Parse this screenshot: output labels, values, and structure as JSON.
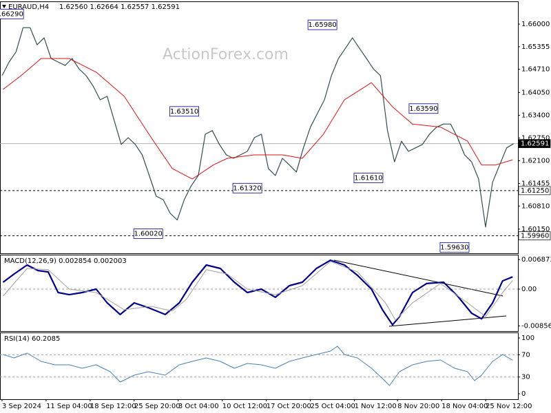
{
  "chart_data": [
    {
      "type": "line",
      "title": "EURAUD,H4",
      "subtitle": "1.62560 1.62664 1.62557 1.62591",
      "watermark": "ActionForex.com",
      "xlim": [
        0,
        516
      ],
      "ylim": [
        1.5946,
        1.6663
      ],
      "yticks": [
        {
          "value": 1.66,
          "label": "1.66000"
        },
        {
          "value": 1.65355,
          "label": "1.65355"
        },
        {
          "value": 1.6471,
          "label": "1.64710"
        },
        {
          "value": 1.6405,
          "label": "1.64050"
        },
        {
          "value": 1.634,
          "label": "1.63400"
        },
        {
          "value": 1.6275,
          "label": "1.62750"
        },
        {
          "value": 1.621,
          "label": "1.62100"
        },
        {
          "value": 1.61455,
          "label": "1.61455"
        },
        {
          "value": 1.6081,
          "label": "1.60810"
        },
        {
          "value": 1.6015,
          "label": "1.60150"
        }
      ],
      "levels": [
        {
          "value": 1.6125,
          "label": "1.61250",
          "style": "dashed"
        },
        {
          "value": 1.5996,
          "label": "1.59960",
          "style": "dashed"
        },
        {
          "value": 1.62591,
          "label": "1.62591",
          "style": "solid"
        }
      ],
      "series": [
        {
          "color": "#2f4f4f",
          "width": 1.2,
          "x": [
            0,
            7,
            14,
            21,
            28,
            35,
            42,
            49,
            56,
            63,
            70,
            77,
            84,
            91,
            98,
            105,
            112,
            119,
            126,
            133,
            140,
            147,
            154,
            161,
            168,
            175,
            182,
            189,
            196,
            203,
            210,
            217,
            224,
            231,
            238,
            245,
            252,
            259,
            266,
            273,
            280,
            287,
            294,
            301,
            308,
            315,
            322,
            329,
            336,
            343,
            350,
            357,
            364,
            371,
            378,
            385,
            392,
            399,
            406,
            413,
            420,
            427,
            434,
            441,
            448,
            455,
            462,
            469,
            476,
            483,
            490,
            497,
            504,
            511
          ],
          "values": [
            1.6453,
            1.6492,
            1.6521,
            1.659,
            1.659,
            1.6541,
            1.6561,
            1.6502,
            1.6492,
            1.6482,
            1.6502,
            1.6472,
            1.6453,
            1.6423,
            1.6384,
            1.6394,
            1.6325,
            1.6257,
            1.6276,
            1.6257,
            1.6227,
            1.6168,
            1.6109,
            1.6099,
            1.606,
            1.6041,
            1.6099,
            1.6139,
            1.6168,
            1.6286,
            1.6296,
            1.6257,
            1.6227,
            1.6217,
            1.6227,
            1.6237,
            1.6276,
            1.6286,
            1.6188,
            1.6168,
            1.6217,
            1.6198,
            1.6178,
            1.6247,
            1.6306,
            1.6345,
            1.6384,
            1.6453,
            1.6502,
            1.6531,
            1.6561,
            1.6531,
            1.6502,
            1.6472,
            1.6453,
            1.6296,
            1.6207,
            1.6266,
            1.6237,
            1.6247,
            1.6257,
            1.6286,
            1.6306,
            1.6315,
            1.6315,
            1.6276,
            1.6227,
            1.6207,
            1.6158,
            1.6021,
            1.6149,
            1.6198,
            1.6247,
            1.6259
          ]
        },
        {
          "color": "#dd1111",
          "width": 1,
          "x": [
            1,
            19,
            39,
            67,
            94,
            122,
            149,
            170,
            190,
            211,
            225,
            252,
            280,
            300,
            321,
            342,
            369,
            390,
            410,
            438,
            465,
            479,
            493,
            510
          ],
          "values": [
            1.6414,
            1.6453,
            1.6502,
            1.6502,
            1.6463,
            1.6394,
            1.6276,
            1.6188,
            1.6158,
            1.6198,
            1.6217,
            1.6227,
            1.6227,
            1.6217,
            1.6286,
            1.6384,
            1.6433,
            1.6364,
            1.6315,
            1.6306,
            1.6266,
            1.6198,
            1.6198,
            1.6213
          ]
        }
      ],
      "annotations": [
        {
          "label": "1.66290",
          "value": 1.6629,
          "x": 7
        },
        {
          "label": "1.65980",
          "value": 1.6598,
          "x": 320
        },
        {
          "label": "1.63510",
          "value": 1.6351,
          "x": 182
        },
        {
          "label": "1.63590",
          "value": 1.6359,
          "x": 421
        },
        {
          "label": "1.61320",
          "value": 1.6132,
          "x": 245
        },
        {
          "label": "1.61610",
          "value": 1.6161,
          "x": 366
        },
        {
          "label": "1.60020",
          "value": 1.6002,
          "x": 146
        },
        {
          "label": "1.59630",
          "value": 1.5963,
          "x": 452
        }
      ]
    },
    {
      "type": "line",
      "title": "MACD(12,26,9) 0.002854 0.002003",
      "xlim": [
        0,
        516
      ],
      "ylim": [
        -0.00959,
        0.00783
      ],
      "yticks": [
        0.006873,
        {
          "value": 0,
          "label": "0.00"
        },
        -0.00856
      ],
      "levels": [
        0
      ],
      "series": [
        {
          "color": "#00008b",
          "width": 2.2,
          "x": [
            1,
            12,
            25,
            36,
            46,
            56,
            67,
            80,
            94,
            105,
            118,
            132,
            146,
            163,
            177,
            190,
            204,
            218,
            232,
            245,
            259,
            273,
            287,
            300,
            314,
            328,
            342,
            355,
            369,
            380,
            390,
            397,
            410,
            424,
            441,
            455,
            469,
            479,
            490,
            500,
            510
          ],
          "values": [
            0.0016,
            0.0035,
            0.0056,
            0.0043,
            0.004,
            -0.0008,
            -0.0013,
            -0.0008,
            0,
            -0.0032,
            -0.0059,
            -0.0032,
            -0.0043,
            -0.0059,
            -0.0032,
            0.0016,
            0.0056,
            0.0048,
            0.0016,
            -0.0008,
            0,
            -0.0019,
            0.0008,
            0.0016,
            0.0048,
            0.0067,
            0.0056,
            0.0032,
            0,
            -0.0048,
            -0.0083,
            -0.0064,
            -0.0008,
            0.0013,
            0.0016,
            -0.0016,
            -0.0056,
            -0.0069,
            -0.0032,
            0.0019,
            0.00285
          ]
        },
        {
          "color": "#a0a0a0",
          "width": 1,
          "x": [
            1,
            25,
            46,
            67,
            94,
            122,
            149,
            170,
            184,
            204,
            225,
            245,
            273,
            300,
            328,
            355,
            383,
            393,
            410,
            438,
            465,
            483,
            500,
            510
          ],
          "values": [
            -0.0016,
            0.0048,
            0.0045,
            0,
            -0.0008,
            -0.0048,
            -0.004,
            -0.0051,
            -0.0024,
            0.0045,
            0.0035,
            0,
            -0.0013,
            0.0008,
            0.0064,
            0.004,
            -0.0032,
            -0.0072,
            -0.0032,
            0.0013,
            -0.0032,
            -0.0064,
            -0.0008,
            0.002
          ]
        }
      ]
    },
    {
      "type": "line",
      "title": "RSI(14) 60.2085",
      "xlim": [
        0,
        516
      ],
      "ylim": [
        -7.4,
        109.9
      ],
      "yticks": [
        100,
        70,
        30,
        0
      ],
      "levels": [
        70,
        30
      ],
      "xticks": [
        {
          "value": 0,
          "label": "3 Sep 2024"
        },
        {
          "value": 44,
          "label": "11 Sep 04:00"
        },
        {
          "value": 88,
          "label": "18 Sep 12:00"
        },
        {
          "value": 132,
          "label": "25 Sep 20:00"
        },
        {
          "value": 176,
          "label": "3 Oct 04:00"
        },
        {
          "value": 220,
          "label": "10 Oct 12:00"
        },
        {
          "value": 264,
          "label": "17 Oct 20:00"
        },
        {
          "value": 308,
          "label": "25 Oct 04:00"
        },
        {
          "value": 352,
          "label": "1 Nov 12:00"
        },
        {
          "value": 395,
          "label": "8 Nov 20:00"
        },
        {
          "value": 439,
          "label": "18 Nov 04:00"
        },
        {
          "value": 483,
          "label": "25 Nov 12:00"
        }
      ],
      "series": [
        {
          "color": "#4682b4",
          "width": 1,
          "x": [
            1,
            12,
            25,
            39,
            53,
            67,
            80,
            94,
            108,
            118,
            132,
            146,
            163,
            177,
            190,
            204,
            218,
            232,
            245,
            259,
            273,
            287,
            300,
            314,
            328,
            335,
            342,
            355,
            369,
            380,
            387,
            397,
            410,
            424,
            438,
            452,
            465,
            472,
            479,
            490,
            500,
            510
          ],
          "values": [
            70.4,
            64.2,
            72.8,
            58,
            51.9,
            51.9,
            45.7,
            51.9,
            39.5,
            21,
            33.3,
            39.5,
            33.3,
            51.9,
            58,
            64.2,
            58,
            45.7,
            54.3,
            51.9,
            45.7,
            58,
            64.2,
            70.4,
            76.5,
            85.2,
            70.4,
            64.2,
            45.7,
            27.2,
            14.8,
            39.5,
            51.9,
            58,
            60.5,
            45.7,
            39.5,
            23.5,
            33.3,
            58,
            70.4,
            60.2
          ]
        }
      ]
    }
  ]
}
